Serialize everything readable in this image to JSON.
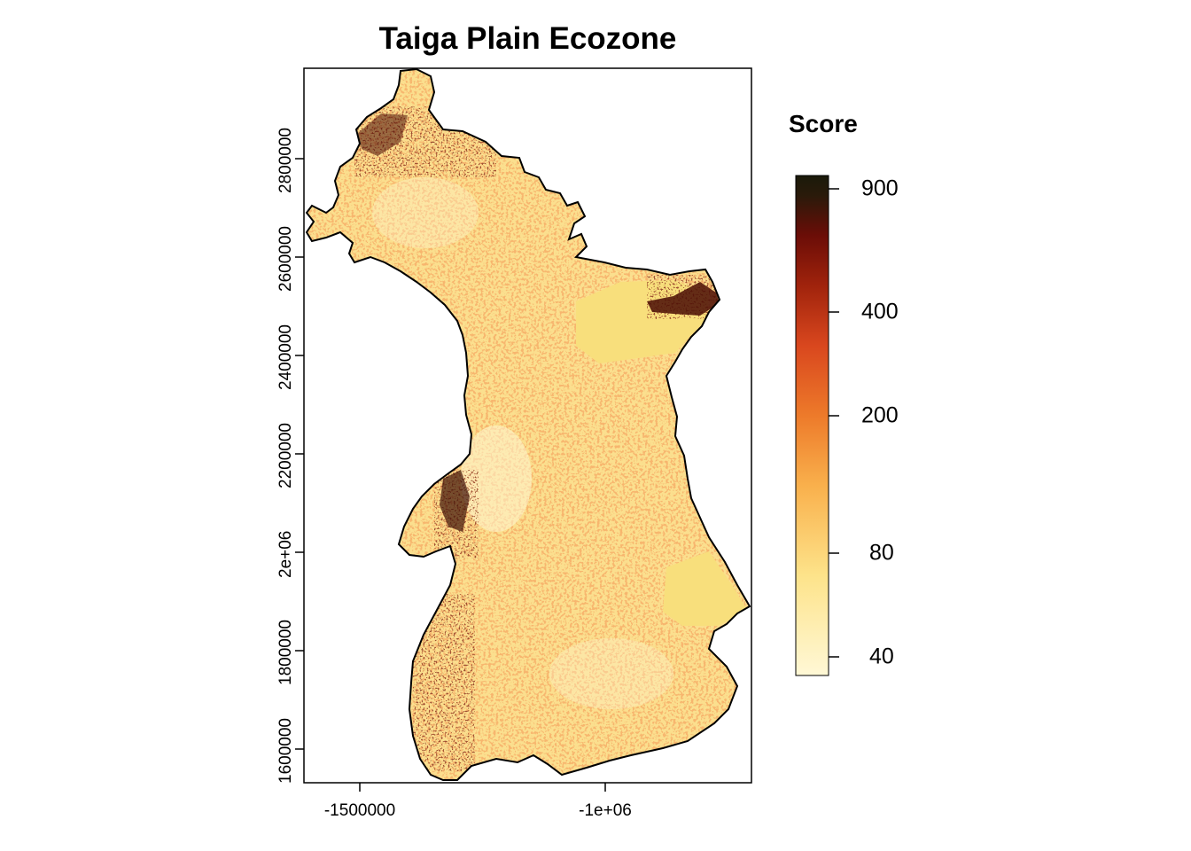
{
  "title": "Taiga Plain Ecozone",
  "map": {
    "x_ticks": [
      "-1500000",
      "-1e+06"
    ],
    "y_ticks": [
      "1600000",
      "1800000",
      "2e+06",
      "2200000",
      "2400000",
      "2600000",
      "2800000"
    ]
  },
  "legend": {
    "title": "Score",
    "ticks": [
      "900",
      "400",
      "200",
      "80",
      "40"
    ],
    "colors": [
      "#fff8d6",
      "#fde38a",
      "#f9b04c",
      "#ed7a2a",
      "#d9471e",
      "#a0230c",
      "#6b0d07",
      "#2a1a0a",
      "#1a1a0a"
    ]
  }
}
